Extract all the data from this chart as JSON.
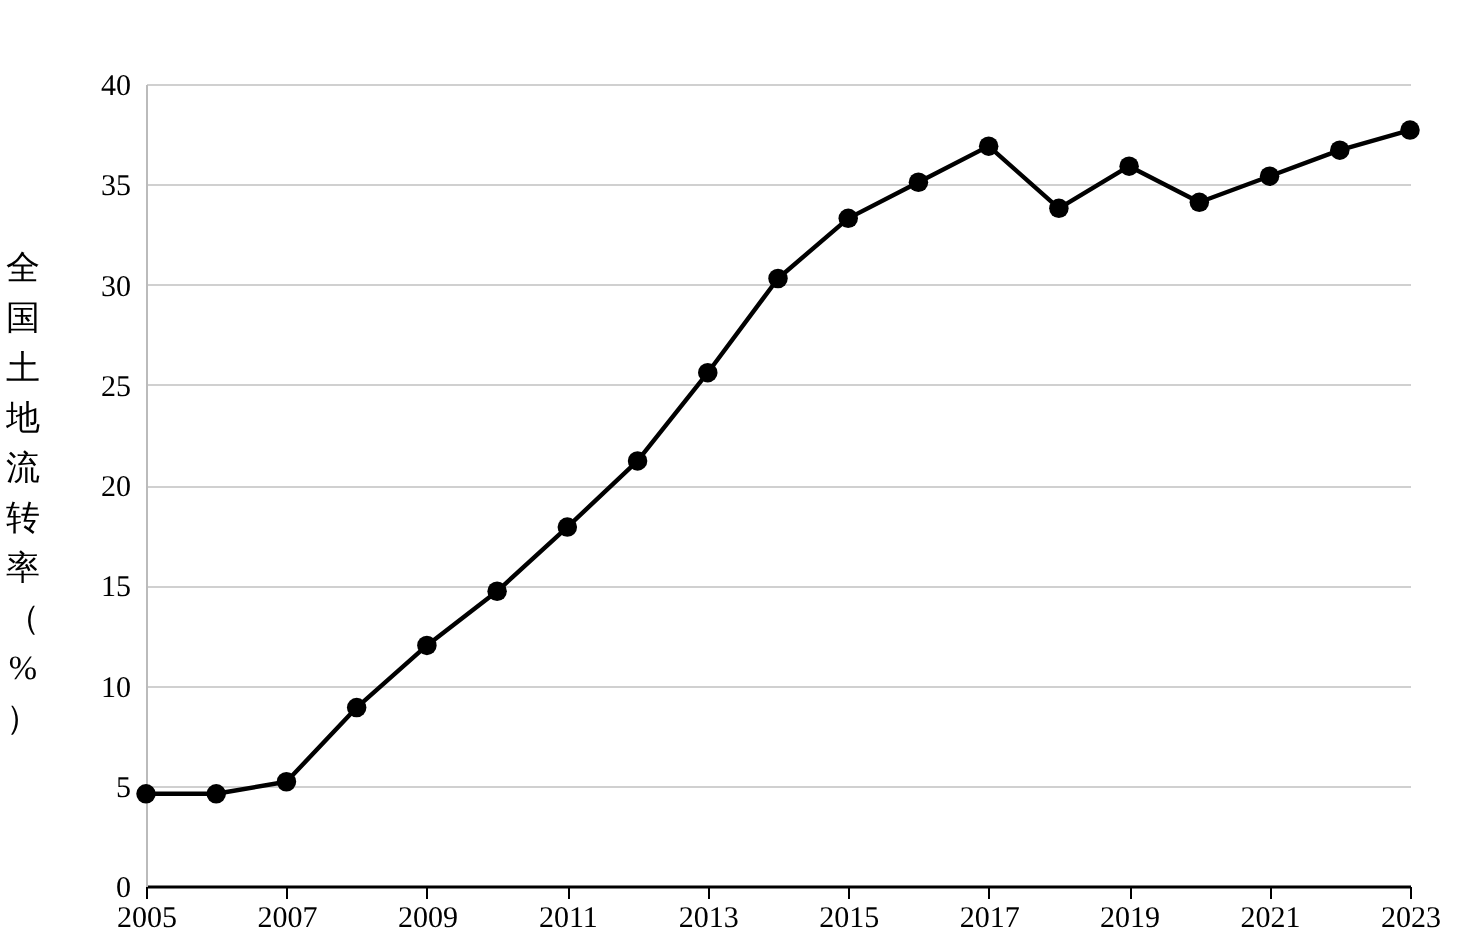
{
  "chart_data": {
    "type": "line",
    "ylabel": "全国土地流转率（%）",
    "x": [
      2005,
      2006,
      2007,
      2008,
      2009,
      2010,
      2011,
      2012,
      2013,
      2014,
      2015,
      2016,
      2017,
      2018,
      2019,
      2020,
      2021,
      2022,
      2023
    ],
    "series": [
      {
        "color": "#000000",
        "values": [
          4.6,
          4.6,
          5.2,
          8.9,
          12.0,
          14.7,
          17.9,
          21.2,
          25.6,
          30.3,
          33.3,
          35.1,
          36.9,
          33.8,
          35.9,
          34.1,
          35.4,
          36.7,
          37.7
        ]
      }
    ],
    "xlim": [
      2005,
      2023
    ],
    "xticks": [
      2005,
      2007,
      2009,
      2011,
      2013,
      2015,
      2017,
      2019,
      2021,
      2023
    ],
    "ylim": [
      0,
      40
    ],
    "yticks": [
      0,
      5,
      10,
      15,
      20,
      25,
      30,
      35,
      40
    ],
    "grid": "y",
    "marker": "circle",
    "line_style": "solid"
  }
}
